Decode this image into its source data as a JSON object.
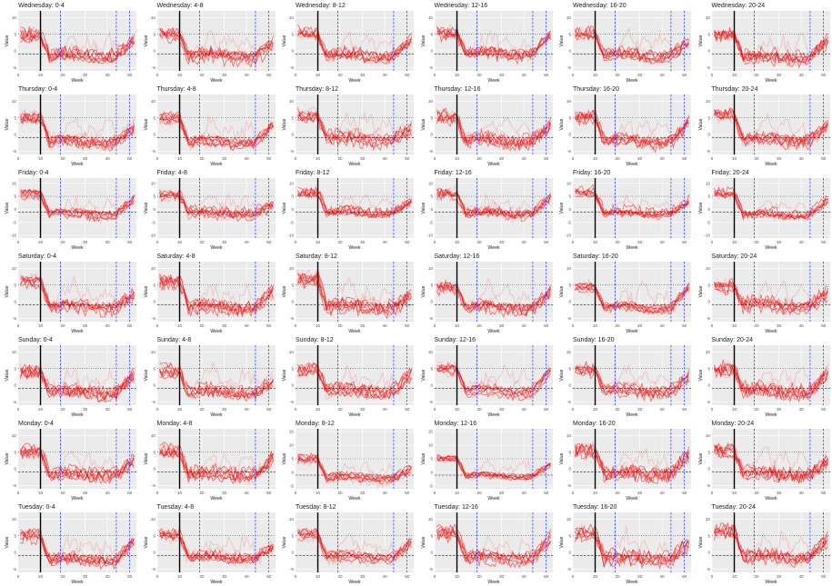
{
  "chart_data": {
    "type": "line",
    "layout": {
      "rows": 7,
      "cols": 6
    },
    "days": [
      "Wednesday",
      "Thursday",
      "Friday",
      "Saturday",
      "Sunday",
      "Monday",
      "Tuesday"
    ],
    "periods": [
      "0-4",
      "4-8",
      "8-12",
      "12-16",
      "16-20",
      "20-24"
    ],
    "xlabel": "Week",
    "ylabel": "Value",
    "xlim": [
      0,
      53
    ],
    "xticks": [
      0,
      10,
      20,
      30,
      40,
      50
    ],
    "vertical_lines": {
      "solid_black": [
        10
      ],
      "dashed_blue": [
        19,
        44,
        50
      ]
    },
    "horizontal_reference": {
      "dotted_upper": 5,
      "dashed_lower": -1
    },
    "grid": true,
    "background": "#ebebeb",
    "series_color": "#ee1111",
    "panels": [
      {
        "title": "Wednesday: 0-4",
        "ylim": [
          -6,
          12
        ],
        "yticks": [
          -5,
          0,
          5,
          10
        ]
      },
      {
        "title": "Wednesday: 4-8",
        "ylim": [
          -6,
          12
        ],
        "yticks": [
          -5,
          0,
          5,
          10
        ]
      },
      {
        "title": "Wednesday: 8-12",
        "ylim": [
          -6,
          12
        ],
        "yticks": [
          -5,
          0,
          5,
          10
        ]
      },
      {
        "title": "Wednesday: 12-16",
        "ylim": [
          -6,
          12
        ],
        "yticks": [
          -5,
          0,
          5,
          10
        ]
      },
      {
        "title": "Wednesday: 16-20",
        "ylim": [
          -6,
          12
        ],
        "yticks": [
          -5,
          0,
          5,
          10
        ]
      },
      {
        "title": "Wednesday: 20-24",
        "ylim": [
          -6,
          12
        ],
        "yticks": [
          -5,
          0,
          5,
          10
        ]
      },
      {
        "title": "Thursday: 0-4",
        "ylim": [
          -6,
          12
        ],
        "yticks": [
          -5,
          0,
          5,
          10
        ]
      },
      {
        "title": "Thursday: 4-8",
        "ylim": [
          -6,
          12
        ],
        "yticks": [
          -5,
          0,
          5,
          10
        ]
      },
      {
        "title": "Thursday: 8-12",
        "ylim": [
          -6,
          12
        ],
        "yticks": [
          -5,
          0,
          5,
          10
        ]
      },
      {
        "title": "Thursday: 12-16",
        "ylim": [
          -6,
          12
        ],
        "yticks": [
          -5,
          0,
          5,
          10
        ]
      },
      {
        "title": "Thursday: 16-20",
        "ylim": [
          -6,
          12
        ],
        "yticks": [
          -5,
          0,
          5,
          10
        ]
      },
      {
        "title": "Thursday: 20-24",
        "ylim": [
          -6,
          12
        ],
        "yticks": [
          -5,
          0,
          5,
          10
        ]
      },
      {
        "title": "Friday: 0-4",
        "ylim": [
          -11,
          12
        ],
        "yticks": [
          -10,
          -5,
          0,
          5,
          10
        ]
      },
      {
        "title": "Friday: 4-8",
        "ylim": [
          -11,
          12
        ],
        "yticks": [
          -10,
          -5,
          0,
          5,
          10
        ]
      },
      {
        "title": "Friday: 8-12",
        "ylim": [
          -11,
          12
        ],
        "yticks": [
          -10,
          -5,
          0,
          5,
          10
        ]
      },
      {
        "title": "Friday: 12-16",
        "ylim": [
          -11,
          12
        ],
        "yticks": [
          -10,
          -5,
          0,
          5,
          10
        ]
      },
      {
        "title": "Friday: 16-20",
        "ylim": [
          -11,
          12
        ],
        "yticks": [
          -10,
          -5,
          0,
          5,
          10
        ]
      },
      {
        "title": "Friday: 20-24",
        "ylim": [
          -11,
          12
        ],
        "yticks": [
          -10,
          -5,
          0,
          5,
          10
        ]
      },
      {
        "title": "Saturday: 0-4",
        "ylim": [
          -6,
          12
        ],
        "yticks": [
          -5,
          0,
          5,
          10
        ]
      },
      {
        "title": "Saturday: 4-8",
        "ylim": [
          -6,
          12
        ],
        "yticks": [
          -5,
          0,
          5,
          10
        ]
      },
      {
        "title": "Saturday: 8-12",
        "ylim": [
          -6,
          12
        ],
        "yticks": [
          -5,
          0,
          5,
          10
        ]
      },
      {
        "title": "Saturday: 12-16",
        "ylim": [
          -6,
          12
        ],
        "yticks": [
          -5,
          0,
          5,
          10
        ]
      },
      {
        "title": "Saturday: 16-20",
        "ylim": [
          -6,
          12
        ],
        "yticks": [
          -5,
          0,
          5,
          10
        ]
      },
      {
        "title": "Saturday: 20-24",
        "ylim": [
          -6,
          12
        ],
        "yticks": [
          -5,
          0,
          5,
          10
        ]
      },
      {
        "title": "Sunday: 0-4",
        "ylim": [
          -6,
          12
        ],
        "yticks": [
          -5,
          0,
          5,
          10
        ]
      },
      {
        "title": "Sunday: 4-8",
        "ylim": [
          -6,
          12
        ],
        "yticks": [
          -5,
          0,
          5,
          10
        ]
      },
      {
        "title": "Sunday: 8-12",
        "ylim": [
          -6,
          12
        ],
        "yticks": [
          -5,
          0,
          5,
          10
        ]
      },
      {
        "title": "Sunday: 12-16",
        "ylim": [
          -6,
          12
        ],
        "yticks": [
          -5,
          0,
          5,
          10
        ]
      },
      {
        "title": "Sunday: 16-20",
        "ylim": [
          -6,
          12
        ],
        "yticks": [
          -5,
          0,
          5,
          10
        ]
      },
      {
        "title": "Sunday: 20-24",
        "ylim": [
          -6,
          12
        ],
        "yticks": [
          -5,
          0,
          5,
          10
        ]
      },
      {
        "title": "Monday: 0-4",
        "ylim": [
          -6,
          12
        ],
        "yticks": [
          -5,
          0,
          5,
          10
        ]
      },
      {
        "title": "Monday: 4-8",
        "ylim": [
          -6,
          12
        ],
        "yticks": [
          -5,
          0,
          5,
          10
        ]
      },
      {
        "title": "Monday: 8-12",
        "ylim": [
          -6,
          16
        ],
        "yticks": [
          -5,
          0,
          5,
          10,
          15
        ]
      },
      {
        "title": "Monday: 12-16",
        "ylim": [
          -6,
          16
        ],
        "yticks": [
          -5,
          0,
          5,
          10,
          15
        ]
      },
      {
        "title": "Monday: 16-20",
        "ylim": [
          -6,
          12
        ],
        "yticks": [
          -5,
          0,
          5,
          10
        ]
      },
      {
        "title": "Monday: 20-24",
        "ylim": [
          -6,
          12
        ],
        "yticks": [
          -5,
          0,
          5,
          10
        ]
      },
      {
        "title": "Tuesday: 0-4",
        "ylim": [
          -6,
          12
        ],
        "yticks": [
          -5,
          0,
          5,
          10
        ]
      },
      {
        "title": "Tuesday: 4-8",
        "ylim": [
          -6,
          12
        ],
        "yticks": [
          -5,
          0,
          5,
          10
        ]
      },
      {
        "title": "Tuesday: 8-12",
        "ylim": [
          -6,
          12
        ],
        "yticks": [
          -5,
          0,
          5,
          10
        ]
      },
      {
        "title": "Tuesday: 12-16",
        "ylim": [
          -6,
          12
        ],
        "yticks": [
          -5,
          0,
          5,
          10
        ]
      },
      {
        "title": "Tuesday: 16-20",
        "ylim": [
          -6,
          12
        ],
        "yticks": [
          -5,
          0,
          5,
          10
        ]
      },
      {
        "title": "Tuesday: 20-24",
        "ylim": [
          -6,
          12
        ],
        "yticks": [
          -5,
          0,
          5,
          10
        ]
      }
    ]
  }
}
